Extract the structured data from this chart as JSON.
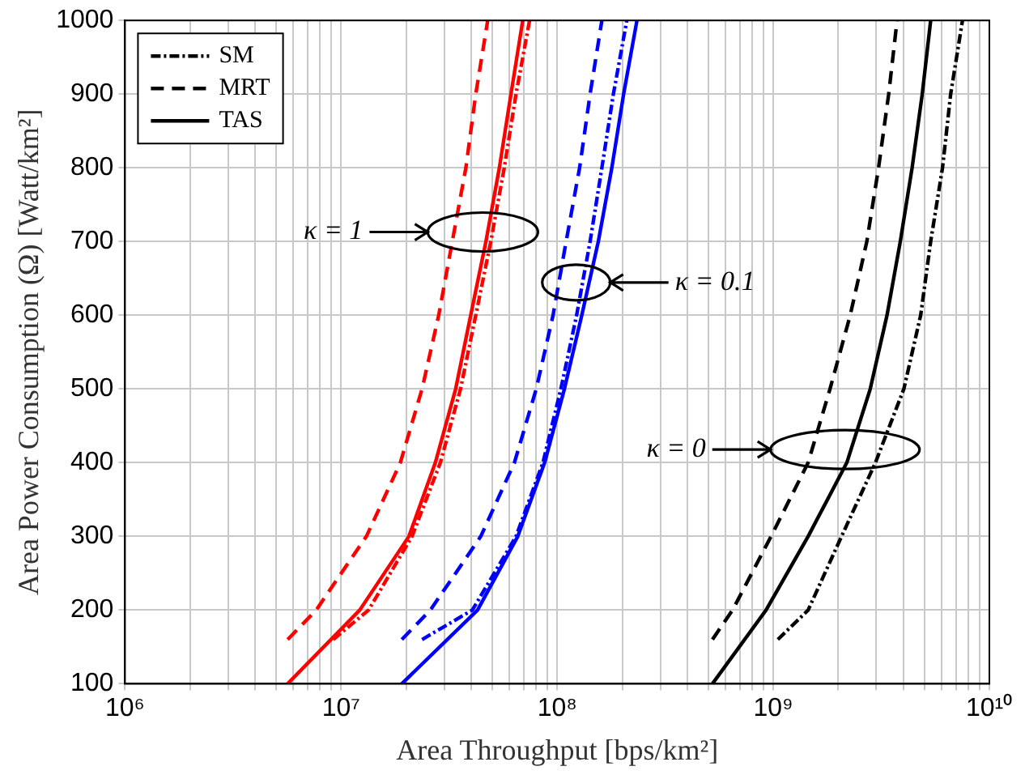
{
  "chart_data": {
    "type": "line",
    "xlabel": "Area Throughput [bps/km²]",
    "ylabel": "Area Power Consumption (Ω) [Watt/km²]",
    "log": "x",
    "grid": true,
    "legend": "top left",
    "marker": "none",
    "xlim": [
      1000000,
      10000000000
    ],
    "ylim": [
      100,
      1000
    ],
    "xticks": [
      {
        "value": 1000000,
        "label": "10⁶"
      },
      {
        "value": 2000000,
        "label": null
      },
      {
        "value": 3000000,
        "label": null
      },
      {
        "value": 4000000,
        "label": null
      },
      {
        "value": 5000000,
        "label": null
      },
      {
        "value": 6000000,
        "label": null
      },
      {
        "value": 7000000,
        "label": null
      },
      {
        "value": 8000000,
        "label": null
      },
      {
        "value": 9000000,
        "label": null
      },
      {
        "value": 10000000,
        "label": "10⁷"
      },
      {
        "value": 20000000,
        "label": null
      },
      {
        "value": 30000000,
        "label": null
      },
      {
        "value": 40000000,
        "label": null
      },
      {
        "value": 50000000,
        "label": null
      },
      {
        "value": 60000000,
        "label": null
      },
      {
        "value": 70000000,
        "label": null
      },
      {
        "value": 80000000,
        "label": null
      },
      {
        "value": 90000000,
        "label": null
      },
      {
        "value": 100000000,
        "label": "10⁸"
      },
      {
        "value": 200000000,
        "label": null
      },
      {
        "value": 300000000,
        "label": null
      },
      {
        "value": 400000000,
        "label": null
      },
      {
        "value": 500000000,
        "label": null
      },
      {
        "value": 600000000,
        "label": null
      },
      {
        "value": 700000000,
        "label": null
      },
      {
        "value": 800000000,
        "label": null
      },
      {
        "value": 900000000,
        "label": null
      },
      {
        "value": 1000000000,
        "label": "10⁹"
      },
      {
        "value": 2000000000,
        "label": null
      },
      {
        "value": 3000000000,
        "label": null
      },
      {
        "value": 4000000000,
        "label": null
      },
      {
        "value": 5000000000,
        "label": null
      },
      {
        "value": 6000000000,
        "label": null
      },
      {
        "value": 7000000000,
        "label": null
      },
      {
        "value": 8000000000,
        "label": null
      },
      {
        "value": 9000000000,
        "label": null
      },
      {
        "value": 10000000000,
        "label": "10¹⁰"
      }
    ],
    "yticks": [
      100,
      200,
      300,
      400,
      500,
      600,
      700,
      800,
      900,
      1000
    ],
    "series": [
      {
        "name": "SM",
        "color": "#000000",
        "line_style": "dotted",
        "x": [
          1050000000,
          1450000000,
          2070000000,
          2970000000,
          4020000000,
          4810000000,
          5350000000,
          6070000000,
          6620000000,
          7510000000
        ],
        "values": [
          160,
          200,
          300,
          400,
          500,
          600,
          700,
          800,
          900,
          1000
        ]
      },
      {
        "name": "MRT",
        "color": "#000000",
        "line_style": "dashed",
        "x": [
          523000000,
          648000000,
          977000000,
          1450000000,
          1830000000,
          2270000000,
          2710000000,
          3070000000,
          3420000000,
          3740000000
        ],
        "values": [
          160,
          200,
          300,
          400,
          500,
          600,
          700,
          800,
          900,
          1000
        ]
      },
      {
        "name": "TAS",
        "color": "#000000",
        "line_style": "solid",
        "x": [
          523000000,
          926000000,
          1450000000,
          2190000000,
          2810000000,
          3360000000,
          3870000000,
          4390000000,
          4890000000,
          5350000000
        ],
        "values": [
          100,
          200,
          300,
          400,
          500,
          600,
          700,
          800,
          900,
          1000
        ]
      },
      {
        "color": "#ff0000",
        "line_style": "dotted",
        "x": [
          9200000,
          13400000,
          21300000,
          28800000,
          35700000,
          42000000,
          49300000,
          56900000,
          64500000,
          74500000
        ],
        "values": [
          160,
          200,
          300,
          400,
          500,
          600,
          700,
          800,
          900,
          1000
        ]
      },
      {
        "color": "#ff0000",
        "line_style": "dashed",
        "x": [
          5660000,
          7670000,
          13100000,
          18800000,
          23700000,
          28300000,
          32700000,
          37800000,
          42000000,
          47700000
        ],
        "values": [
          160,
          200,
          300,
          400,
          500,
          600,
          700,
          800,
          900,
          1000
        ]
      },
      {
        "color": "#ff0000",
        "line_style": "solid",
        "x": [
          5660000,
          12200000,
          20600000,
          27300000,
          33900000,
          39800000,
          46800000,
          54000000,
          61100000,
          69300000
        ],
        "values": [
          100,
          200,
          300,
          400,
          500,
          600,
          700,
          800,
          900,
          1000
        ]
      },
      {
        "color": "#0000ff",
        "line_style": "dotted",
        "x": [
          23700000,
          40500000,
          64500000,
          85900000,
          104000000,
          123000000,
          142000000,
          161000000,
          182000000,
          210000000
        ],
        "values": [
          160,
          200,
          300,
          400,
          500,
          600,
          700,
          800,
          900,
          1000
        ]
      },
      {
        "color": "#0000ff",
        "line_style": "dashed",
        "x": [
          19100000,
          25900000,
          44300000,
          63400000,
          80000000,
          95700000,
          110000000,
          127000000,
          142000000,
          161000000
        ],
        "values": [
          160,
          200,
          300,
          400,
          500,
          600,
          700,
          800,
          900,
          1000
        ]
      },
      {
        "color": "#0000ff",
        "line_style": "solid",
        "x": [
          19100000,
          42800000,
          65700000,
          87500000,
          108000000,
          130000000,
          155000000,
          179000000,
          203000000,
          234000000
        ],
        "values": [
          100,
          200,
          300,
          400,
          500,
          600,
          700,
          800,
          900,
          1000
        ]
      }
    ],
    "annotations": [
      "κ = 1",
      "κ = 0.1",
      "κ = 0"
    ]
  }
}
